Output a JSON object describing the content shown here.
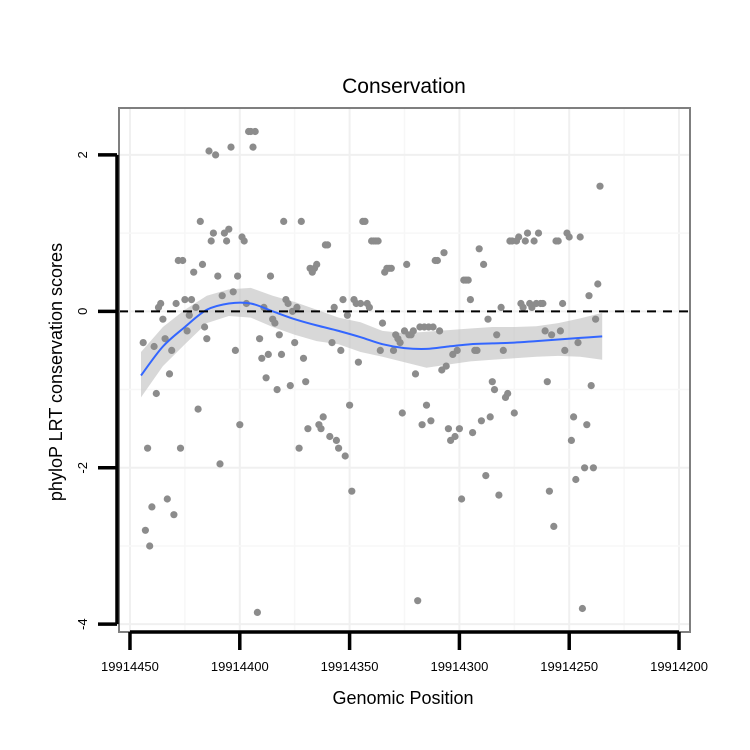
{
  "chart_data": {
    "type": "scatter",
    "title": "Conservation",
    "xlabel": "Genomic Position",
    "ylabel": "phyloP LRT conservation scores",
    "x_reversed": true,
    "xlim": [
      19914455,
      19914195
    ],
    "ylim": [
      -4.1,
      2.6
    ],
    "x_ticks": [
      19914450,
      19914400,
      19914350,
      19914300,
      19914250,
      19914200
    ],
    "x_tick_labels": [
      "19914450",
      "19914400",
      "19914350",
      "19914300",
      "19914250",
      "19914200"
    ],
    "y_ticks": [
      2,
      0,
      -2,
      -4
    ],
    "y_tick_labels": [
      "2",
      "0",
      "-2",
      "-4"
    ],
    "reference_line": {
      "y": 0,
      "style": "dashed"
    },
    "grid": true,
    "series": [
      {
        "name": "phyloP scores",
        "kind": "points",
        "color": "#8c8c8c",
        "points": [
          [
            19914444,
            -0.4
          ],
          [
            19914443,
            -2.8
          ],
          [
            19914442,
            -1.75
          ],
          [
            19914441,
            -3.0
          ],
          [
            19914440,
            -2.5
          ],
          [
            19914439,
            -0.45
          ],
          [
            19914438,
            -1.05
          ],
          [
            19914437,
            0.05
          ],
          [
            19914436,
            0.1
          ],
          [
            19914435,
            -0.1
          ],
          [
            19914434,
            -0.35
          ],
          [
            19914433,
            -2.4
          ],
          [
            19914432,
            -0.8
          ],
          [
            19914431,
            -0.5
          ],
          [
            19914430,
            -2.6
          ],
          [
            19914429,
            0.1
          ],
          [
            19914428,
            0.65
          ],
          [
            19914427,
            -1.75
          ],
          [
            19914426,
            0.65
          ],
          [
            19914425,
            0.15
          ],
          [
            19914424,
            -0.25
          ],
          [
            19914423,
            -0.05
          ],
          [
            19914422,
            0.15
          ],
          [
            19914421,
            0.5
          ],
          [
            19914420,
            0.05
          ],
          [
            19914419,
            -1.25
          ],
          [
            19914418,
            1.15
          ],
          [
            19914417,
            0.6
          ],
          [
            19914416,
            -0.2
          ],
          [
            19914415,
            -0.35
          ],
          [
            19914414,
            2.05
          ],
          [
            19914413,
            0.9
          ],
          [
            19914412,
            1.0
          ],
          [
            19914411,
            2.0
          ],
          [
            19914410,
            0.45
          ],
          [
            19914409,
            -1.95
          ],
          [
            19914408,
            0.2
          ],
          [
            19914407,
            1.0
          ],
          [
            19914406,
            0.9
          ],
          [
            19914405,
            1.05
          ],
          [
            19914404,
            2.1
          ],
          [
            19914403,
            0.25
          ],
          [
            19914402,
            -0.5
          ],
          [
            19914401,
            0.45
          ],
          [
            19914400,
            -1.45
          ],
          [
            19914399,
            0.95
          ],
          [
            19914398,
            0.9
          ],
          [
            19914397,
            0.1
          ],
          [
            19914396,
            2.3
          ],
          [
            19914395,
            2.3
          ],
          [
            19914394,
            2.1
          ],
          [
            19914393,
            2.3
          ],
          [
            19914392,
            -3.85
          ],
          [
            19914391,
            -0.35
          ],
          [
            19914390,
            -0.6
          ],
          [
            19914389,
            0.05
          ],
          [
            19914388,
            -0.85
          ],
          [
            19914387,
            -0.55
          ],
          [
            19914386,
            0.45
          ],
          [
            19914385,
            -0.1
          ],
          [
            19914384,
            -0.15
          ],
          [
            19914383,
            -1.0
          ],
          [
            19914382,
            -0.3
          ],
          [
            19914381,
            -0.55
          ],
          [
            19914380,
            1.15
          ],
          [
            19914379,
            0.15
          ],
          [
            19914378,
            0.1
          ],
          [
            19914377,
            -0.95
          ],
          [
            19914376,
            0.0
          ],
          [
            19914375,
            -0.4
          ],
          [
            19914374,
            0.05
          ],
          [
            19914373,
            -1.75
          ],
          [
            19914372,
            1.15
          ],
          [
            19914371,
            -0.6
          ],
          [
            19914370,
            -0.9
          ],
          [
            19914369,
            -1.5
          ],
          [
            19914368,
            0.55
          ],
          [
            19914367,
            0.5
          ],
          [
            19914366,
            0.55
          ],
          [
            19914365,
            0.6
          ],
          [
            19914364,
            -1.45
          ],
          [
            19914363,
            -1.5
          ],
          [
            19914362,
            -1.35
          ],
          [
            19914361,
            0.85
          ],
          [
            19914360,
            0.85
          ],
          [
            19914359,
            -1.6
          ],
          [
            19914358,
            -0.4
          ],
          [
            19914357,
            0.05
          ],
          [
            19914356,
            -1.65
          ],
          [
            19914355,
            -1.75
          ],
          [
            19914354,
            -0.5
          ],
          [
            19914353,
            0.15
          ],
          [
            19914352,
            -1.85
          ],
          [
            19914351,
            -0.05
          ],
          [
            19914350,
            -1.2
          ],
          [
            19914349,
            -2.3
          ],
          [
            19914348,
            0.15
          ],
          [
            19914347,
            0.1
          ],
          [
            19914346,
            -0.65
          ],
          [
            19914345,
            0.1
          ],
          [
            19914344,
            1.15
          ],
          [
            19914343,
            1.15
          ],
          [
            19914342,
            0.1
          ],
          [
            19914341,
            0.05
          ],
          [
            19914340,
            0.9
          ],
          [
            19914339,
            0.9
          ],
          [
            19914338,
            0.9
          ],
          [
            19914337,
            0.9
          ],
          [
            19914336,
            -0.5
          ],
          [
            19914335,
            -0.15
          ],
          [
            19914334,
            0.5
          ],
          [
            19914333,
            0.55
          ],
          [
            19914332,
            0.55
          ],
          [
            19914331,
            0.55
          ],
          [
            19914330,
            -0.5
          ],
          [
            19914329,
            -0.3
          ],
          [
            19914328,
            -0.35
          ],
          [
            19914327,
            -0.4
          ],
          [
            19914326,
            -1.3
          ],
          [
            19914325,
            -0.25
          ],
          [
            19914324,
            0.6
          ],
          [
            19914323,
            -0.3
          ],
          [
            19914322,
            -0.3
          ],
          [
            19914321,
            -0.25
          ],
          [
            19914320,
            -0.8
          ],
          [
            19914319,
            -3.7
          ],
          [
            19914318,
            -0.2
          ],
          [
            19914317,
            -1.45
          ],
          [
            19914316,
            -0.2
          ],
          [
            19914315,
            -1.2
          ],
          [
            19914314,
            -0.2
          ],
          [
            19914313,
            -1.4
          ],
          [
            19914312,
            -0.2
          ],
          [
            19914311,
            0.65
          ],
          [
            19914310,
            0.65
          ],
          [
            19914309,
            -0.25
          ],
          [
            19914308,
            -0.75
          ],
          [
            19914307,
            0.75
          ],
          [
            19914306,
            -0.7
          ],
          [
            19914305,
            -1.5
          ],
          [
            19914304,
            -1.65
          ],
          [
            19914303,
            -0.55
          ],
          [
            19914302,
            -1.6
          ],
          [
            19914301,
            -0.5
          ],
          [
            19914300,
            -1.5
          ],
          [
            19914299,
            -2.4
          ],
          [
            19914298,
            0.4
          ],
          [
            19914297,
            0.4
          ],
          [
            19914296,
            0.4
          ],
          [
            19914295,
            0.15
          ],
          [
            19914294,
            -1.55
          ],
          [
            19914293,
            -0.5
          ],
          [
            19914292,
            -0.5
          ],
          [
            19914291,
            0.8
          ],
          [
            19914290,
            -1.4
          ],
          [
            19914289,
            0.6
          ],
          [
            19914288,
            -2.1
          ],
          [
            19914287,
            -0.1
          ],
          [
            19914286,
            -1.35
          ],
          [
            19914285,
            -0.9
          ],
          [
            19914284,
            -1.0
          ],
          [
            19914283,
            -0.3
          ],
          [
            19914282,
            -2.35
          ],
          [
            19914281,
            0.05
          ],
          [
            19914280,
            -0.5
          ],
          [
            19914279,
            -1.1
          ],
          [
            19914278,
            -1.05
          ],
          [
            19914277,
            0.9
          ],
          [
            19914276,
            0.9
          ],
          [
            19914275,
            -1.3
          ],
          [
            19914274,
            0.9
          ],
          [
            19914273,
            0.95
          ],
          [
            19914272,
            0.1
          ],
          [
            19914271,
            0.05
          ],
          [
            19914270,
            0.9
          ],
          [
            19914269,
            1.0
          ],
          [
            19914268,
            0.1
          ],
          [
            19914267,
            0.05
          ],
          [
            19914266,
            0.9
          ],
          [
            19914265,
            0.1
          ],
          [
            19914264,
            1.0
          ],
          [
            19914263,
            0.1
          ],
          [
            19914262,
            0.1
          ],
          [
            19914261,
            -0.25
          ],
          [
            19914260,
            -0.9
          ],
          [
            19914259,
            -2.3
          ],
          [
            19914258,
            -0.3
          ],
          [
            19914257,
            -2.75
          ],
          [
            19914256,
            0.9
          ],
          [
            19914255,
            0.9
          ],
          [
            19914254,
            -0.25
          ],
          [
            19914253,
            0.1
          ],
          [
            19914252,
            -0.5
          ],
          [
            19914251,
            1.0
          ],
          [
            19914250,
            0.95
          ],
          [
            19914249,
            -1.65
          ],
          [
            19914248,
            -1.35
          ],
          [
            19914247,
            -2.15
          ],
          [
            19914246,
            -0.4
          ],
          [
            19914245,
            0.95
          ],
          [
            19914244,
            -3.8
          ],
          [
            19914243,
            -2.0
          ],
          [
            19914242,
            -1.45
          ],
          [
            19914241,
            0.2
          ],
          [
            19914240,
            -0.95
          ],
          [
            19914239,
            -2.0
          ],
          [
            19914238,
            -0.1
          ],
          [
            19914237,
            0.35
          ],
          [
            19914236,
            1.6
          ]
        ]
      },
      {
        "name": "smoothed trend",
        "kind": "line",
        "color": "#3366ff",
        "band_color": "#bebebe",
        "x": [
          19914445,
          19914435,
          19914425,
          19914415,
          19914405,
          19914395,
          19914385,
          19914375,
          19914365,
          19914355,
          19914345,
          19914335,
          19914325,
          19914315,
          19914305,
          19914295,
          19914285,
          19914275,
          19914265,
          19914255,
          19914245,
          19914235
        ],
        "y": [
          -0.82,
          -0.45,
          -0.2,
          0.02,
          0.1,
          0.1,
          0.0,
          -0.1,
          -0.18,
          -0.25,
          -0.33,
          -0.42,
          -0.47,
          -0.48,
          -0.45,
          -0.42,
          -0.41,
          -0.4,
          -0.38,
          -0.36,
          -0.34,
          -0.32
        ],
        "lower": [
          -1.1,
          -0.7,
          -0.42,
          -0.15,
          -0.06,
          -0.08,
          -0.2,
          -0.3,
          -0.38,
          -0.42,
          -0.52,
          -0.58,
          -0.65,
          -0.72,
          -0.68,
          -0.64,
          -0.62,
          -0.6,
          -0.58,
          -0.57,
          -0.58,
          -0.62
        ],
        "upper": [
          -0.52,
          -0.2,
          0.02,
          0.2,
          0.28,
          0.3,
          0.2,
          0.12,
          0.02,
          -0.08,
          -0.14,
          -0.25,
          -0.28,
          -0.26,
          -0.24,
          -0.22,
          -0.2,
          -0.2,
          -0.19,
          -0.15,
          -0.09,
          -0.02
        ]
      }
    ]
  }
}
